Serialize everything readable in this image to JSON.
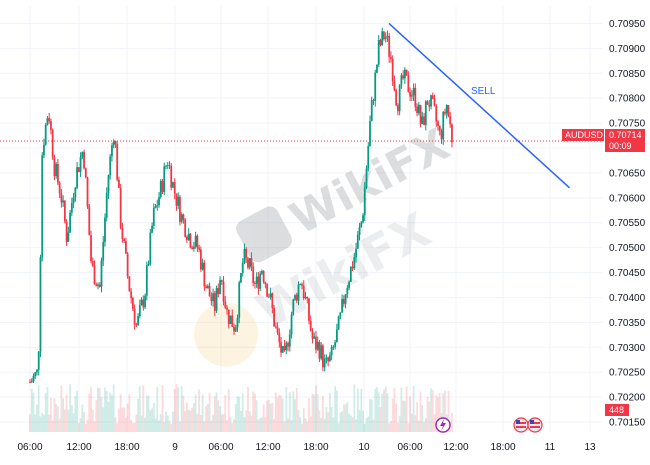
{
  "chart_data": {
    "type": "candlestick",
    "symbol": "AUDUSD",
    "last_price": "0.70714",
    "countdown": "00:09",
    "volume_badge": "448",
    "ylim": [
      0.7013,
      0.70985
    ],
    "y_ticks": [
      "0.70950",
      "0.70900",
      "0.70850",
      "0.70800",
      "0.70750",
      "0.70700",
      "0.70650",
      "0.70600",
      "0.70550",
      "0.70500",
      "0.70450",
      "0.70400",
      "0.70350",
      "0.70300",
      "0.70250",
      "0.70200",
      "0.70150"
    ],
    "x_ticks": [
      "06:00",
      "12:00",
      "18:00",
      "9",
      "06:00",
      "12:00",
      "18:00",
      "10",
      "06:00",
      "12:00",
      "18:00",
      "11",
      "13"
    ],
    "close_path": [
      {
        "t": 0.0,
        "v": 0.7023
      },
      {
        "t": 0.02,
        "v": 0.7024
      },
      {
        "t": 0.04,
        "v": 0.7025
      },
      {
        "t": 0.06,
        "v": 0.707
      },
      {
        "t": 0.09,
        "v": 0.7078
      },
      {
        "t": 0.12,
        "v": 0.7066
      },
      {
        "t": 0.15,
        "v": 0.7061
      },
      {
        "t": 0.18,
        "v": 0.7052
      },
      {
        "t": 0.22,
        "v": 0.7064
      },
      {
        "t": 0.26,
        "v": 0.707
      },
      {
        "t": 0.3,
        "v": 0.7046
      },
      {
        "t": 0.34,
        "v": 0.7042
      },
      {
        "t": 0.38,
        "v": 0.7064
      },
      {
        "t": 0.41,
        "v": 0.7074
      },
      {
        "t": 0.44,
        "v": 0.7056
      },
      {
        "t": 0.48,
        "v": 0.7043
      },
      {
        "t": 0.52,
        "v": 0.7034
      },
      {
        "t": 0.56,
        "v": 0.7041
      },
      {
        "t": 0.6,
        "v": 0.7056
      },
      {
        "t": 0.64,
        "v": 0.7062
      },
      {
        "t": 0.67,
        "v": 0.7068
      },
      {
        "t": 0.7,
        "v": 0.7062
      },
      {
        "t": 0.74,
        "v": 0.7056
      },
      {
        "t": 0.78,
        "v": 0.7052
      },
      {
        "t": 0.82,
        "v": 0.705
      },
      {
        "t": 0.86,
        "v": 0.7042
      },
      {
        "t": 0.9,
        "v": 0.7038
      },
      {
        "t": 0.93,
        "v": 0.7045
      },
      {
        "t": 0.96,
        "v": 0.7037
      },
      {
        "t": 1.0,
        "v": 0.7034
      },
      {
        "t": 1.04,
        "v": 0.7048
      },
      {
        "t": 1.07,
        "v": 0.7046
      },
      {
        "t": 1.1,
        "v": 0.7042
      },
      {
        "t": 1.13,
        "v": 0.7046
      },
      {
        "t": 1.17,
        "v": 0.704
      },
      {
        "t": 1.2,
        "v": 0.7033
      },
      {
        "t": 1.24,
        "v": 0.7027
      },
      {
        "t": 1.28,
        "v": 0.7038
      },
      {
        "t": 1.32,
        "v": 0.7044
      },
      {
        "t": 1.35,
        "v": 0.7038
      },
      {
        "t": 1.38,
        "v": 0.7031
      },
      {
        "t": 1.41,
        "v": 0.703
      },
      {
        "t": 1.44,
        "v": 0.7026
      },
      {
        "t": 1.47,
        "v": 0.7028
      },
      {
        "t": 1.51,
        "v": 0.7035
      },
      {
        "t": 1.54,
        "v": 0.7042
      },
      {
        "t": 1.58,
        "v": 0.7048
      },
      {
        "t": 1.62,
        "v": 0.7056
      },
      {
        "t": 1.66,
        "v": 0.7076
      },
      {
        "t": 1.7,
        "v": 0.709
      },
      {
        "t": 1.73,
        "v": 0.7093
      },
      {
        "t": 1.76,
        "v": 0.7088
      },
      {
        "t": 1.79,
        "v": 0.7079
      },
      {
        "t": 1.82,
        "v": 0.7084
      },
      {
        "t": 1.85,
        "v": 0.7082
      },
      {
        "t": 1.88,
        "v": 0.708
      },
      {
        "t": 1.91,
        "v": 0.7074
      },
      {
        "t": 1.94,
        "v": 0.708
      },
      {
        "t": 1.97,
        "v": 0.7077
      },
      {
        "t": 2.0,
        "v": 0.7072
      },
      {
        "t": 2.03,
        "v": 0.7079
      },
      {
        "t": 2.06,
        "v": 0.70714
      }
    ],
    "annotations": [
      {
        "type": "trendline",
        "label": "SELL",
        "from": {
          "t": 1.75,
          "v": 0.7095
        },
        "to": {
          "t": 2.63,
          "v": 0.7062
        },
        "color": "#2962ff"
      },
      {
        "type": "price_line",
        "value": 0.70714,
        "color": "#f23645"
      }
    ],
    "colors": {
      "up": "#089981",
      "down": "#f23645",
      "grid": "#f0f3fa",
      "badge": "#f23645"
    }
  },
  "watermark": {
    "top": "WikiFX",
    "bottom": "WikiFX"
  }
}
